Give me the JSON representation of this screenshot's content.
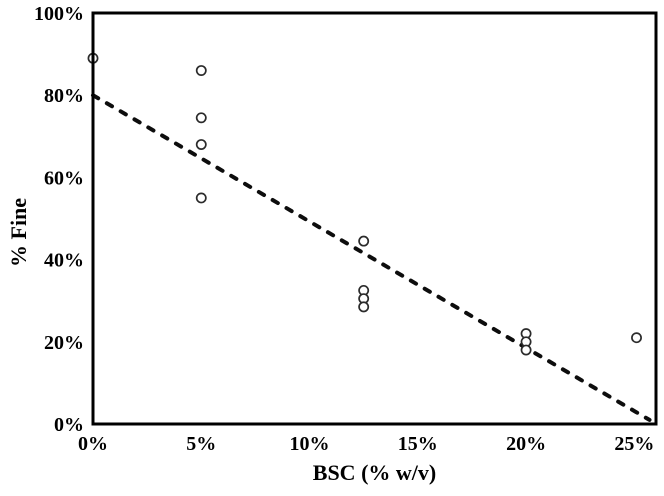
{
  "figure": {
    "background": "#ffffff"
  },
  "chart_data": {
    "type": "scatter",
    "title": "",
    "xlabel": "BSC (% w/v)",
    "ylabel": "% Fine",
    "xlim": [
      0,
      26
    ],
    "ylim": [
      0,
      100
    ],
    "grid": false,
    "legend": "none",
    "marker": "open-circle",
    "x_ticks": {
      "values": [
        0,
        5,
        10,
        15,
        20,
        25
      ],
      "labels": [
        "0%",
        "5%",
        "10%",
        "15%",
        "20%",
        "25%"
      ]
    },
    "y_ticks": {
      "values": [
        0,
        20,
        40,
        60,
        80,
        100
      ],
      "labels": [
        "0%",
        "20%",
        "40%",
        "60%",
        "80%",
        "100%"
      ]
    },
    "points": [
      {
        "x": 0,
        "y": 89
      },
      {
        "x": 5,
        "y": 86
      },
      {
        "x": 5,
        "y": 74.5
      },
      {
        "x": 5,
        "y": 68
      },
      {
        "x": 5,
        "y": 55
      },
      {
        "x": 12.5,
        "y": 44.5
      },
      {
        "x": 12.5,
        "y": 32.5
      },
      {
        "x": 12.5,
        "y": 30.5
      },
      {
        "x": 12.5,
        "y": 28.5
      },
      {
        "x": 20,
        "y": 22
      },
      {
        "x": 20,
        "y": 20
      },
      {
        "x": 20,
        "y": 18
      },
      {
        "x": 25.1,
        "y": 21
      }
    ],
    "trendline": {
      "style": "dashed",
      "x1": 0,
      "y1": 80,
      "x2": 25.7,
      "y2": 1
    },
    "colors": {
      "axis": "#000000",
      "tick_label": "#000000",
      "marker_stroke": "#2b2b2b",
      "marker_fill": "#ffffff",
      "trendline": "#0d0d0d",
      "background": "#ffffff"
    }
  }
}
